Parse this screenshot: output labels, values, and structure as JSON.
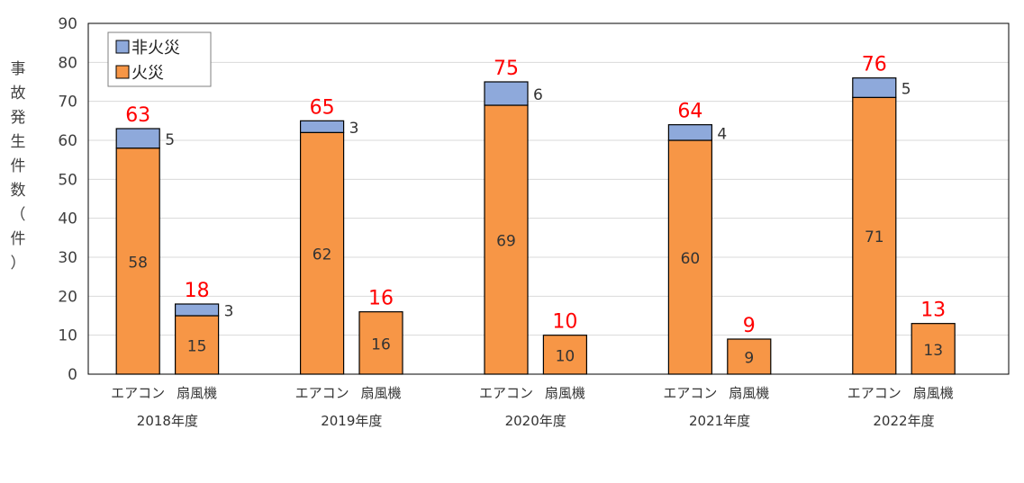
{
  "chart_data": {
    "type": "bar",
    "stacked": true,
    "ylabel": "事故発生件数（件）",
    "ylim": [
      0,
      90
    ],
    "yticks": [
      0,
      10,
      20,
      30,
      40,
      50,
      60,
      70,
      80,
      90
    ],
    "grid": true,
    "legend": {
      "position": "top-left",
      "entries": [
        "非火災",
        "火災"
      ]
    },
    "groups": [
      "2018年度",
      "2019年度",
      "2020年度",
      "2021年度",
      "2022年度"
    ],
    "categories": [
      "エアコン",
      "扇風機",
      "エアコン",
      "扇風機",
      "エアコン",
      "扇風機",
      "エアコン",
      "扇風機",
      "エアコン",
      "扇風機"
    ],
    "series": [
      {
        "name": "火災",
        "color": "#F79646",
        "values": [
          58,
          15,
          62,
          16,
          69,
          10,
          60,
          9,
          71,
          13
        ]
      },
      {
        "name": "非火災",
        "color": "#8EA9DB",
        "values": [
          5,
          3,
          3,
          0,
          6,
          0,
          4,
          0,
          5,
          0
        ]
      }
    ],
    "totals": [
      63,
      18,
      65,
      16,
      75,
      10,
      64,
      9,
      76,
      13
    ],
    "colors": {
      "total_label": "#FF0000",
      "bar_edge": "#000000",
      "grid": "#D9D9D9"
    }
  }
}
